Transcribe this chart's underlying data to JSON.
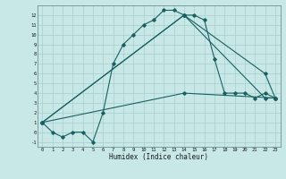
{
  "xlabel": "Humidex (Indice chaleur)",
  "ylabel": "",
  "bg_color": "#c8e8e8",
  "grid_color": "#a8cece",
  "line_color": "#1a6060",
  "xlim": [
    -0.5,
    23.5
  ],
  "ylim": [
    -1.5,
    13.0
  ],
  "xticks": [
    0,
    1,
    2,
    3,
    4,
    5,
    6,
    7,
    8,
    9,
    10,
    11,
    12,
    13,
    14,
    15,
    16,
    17,
    18,
    19,
    20,
    21,
    22,
    23
  ],
  "yticks": [
    -1,
    0,
    1,
    2,
    3,
    4,
    5,
    6,
    7,
    8,
    9,
    10,
    11,
    12
  ],
  "lines": [
    {
      "x": [
        0,
        1,
        2,
        3,
        4,
        5,
        6,
        7,
        8,
        9,
        10,
        11,
        12,
        13,
        14,
        15,
        16,
        17,
        18,
        19,
        20,
        21,
        22,
        23
      ],
      "y": [
        1,
        0,
        -0.5,
        0,
        0,
        -1,
        2,
        7,
        9,
        10,
        11,
        11.5,
        12.5,
        12.5,
        12,
        12,
        11.5,
        7.5,
        4,
        4,
        4,
        3.5,
        4,
        3.5
      ]
    },
    {
      "x": [
        0,
        14,
        22,
        23
      ],
      "y": [
        1,
        12,
        3.5,
        3.5
      ]
    },
    {
      "x": [
        0,
        14,
        22,
        23
      ],
      "y": [
        1,
        12,
        6,
        3.5
      ]
    },
    {
      "x": [
        0,
        14,
        23
      ],
      "y": [
        1,
        4,
        3.5
      ]
    }
  ]
}
